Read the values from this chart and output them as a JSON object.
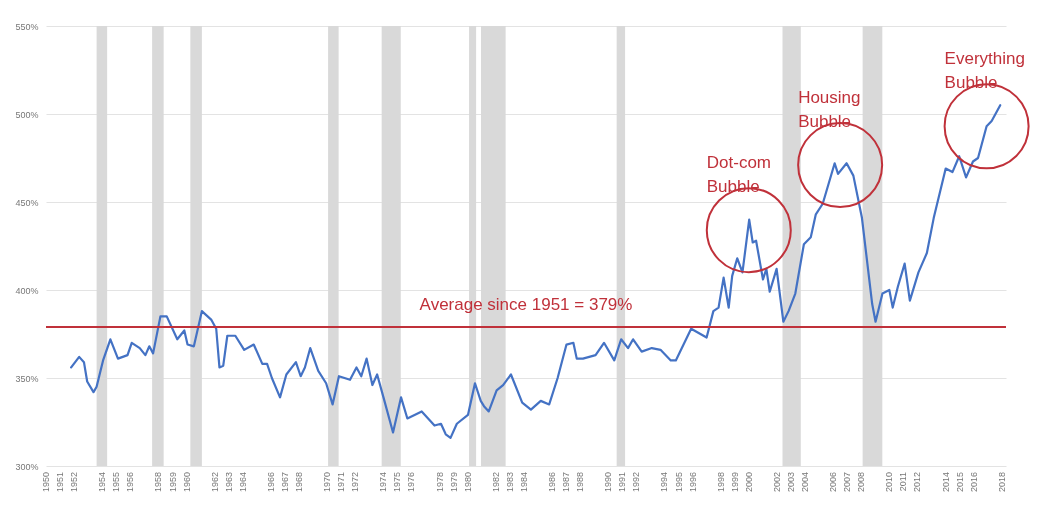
{
  "chart_data": {
    "type": "line",
    "xlim": [
      1950,
      2018.3
    ],
    "ylim": [
      300,
      550
    ],
    "yticks": [
      {
        "value": 300,
        "label": "300%"
      },
      {
        "value": 350,
        "label": "350%"
      },
      {
        "value": 400,
        "label": "400%"
      },
      {
        "value": 450,
        "label": "450%"
      },
      {
        "value": 500,
        "label": "500%"
      },
      {
        "value": 550,
        "label": "550%"
      }
    ],
    "xticks": [
      1950,
      1951,
      1952,
      1954,
      1955,
      1956,
      1958,
      1959,
      1960,
      1962,
      1963,
      1964,
      1966,
      1967,
      1968,
      1970,
      1971,
      1972,
      1974,
      1975,
      1976,
      1978,
      1979,
      1980,
      1982,
      1983,
      1984,
      1986,
      1987,
      1988,
      1990,
      1991,
      1992,
      1994,
      1995,
      1996,
      1998,
      1999,
      2000,
      2002,
      2003,
      2004,
      2006,
      2007,
      2008,
      2010,
      2011,
      2012,
      2014,
      2015,
      2016,
      2018
    ],
    "grid": "y",
    "series": [
      {
        "color": "#4472c4",
        "x": [
          1951.79,
          1952.36,
          1952.7,
          1952.93,
          1953.38,
          1953.6,
          1954.06,
          1954.58,
          1955.12,
          1955.8,
          1956.1,
          1956.67,
          1957.07,
          1957.35,
          1957.62,
          1958.14,
          1958.59,
          1959.34,
          1959.84,
          1960.07,
          1960.52,
          1961.09,
          1961.77,
          1962.11,
          1962.34,
          1962.61,
          1962.9,
          1963.47,
          1964.1,
          1964.78,
          1965.39,
          1965.73,
          1966.07,
          1966.65,
          1967.1,
          1967.78,
          1968.12,
          1968.42,
          1968.8,
          1969.37,
          1969.93,
          1970.39,
          1970.84,
          1971.63,
          1972.09,
          1972.43,
          1972.81,
          1973.22,
          1973.56,
          1974.01,
          1974.69,
          1975.26,
          1975.71,
          1976.73,
          1977.64,
          1978.1,
          1978.44,
          1978.78,
          1979.23,
          1980.02,
          1980.52,
          1980.93,
          1981.16,
          1981.5,
          1982.06,
          1982.52,
          1983.08,
          1983.88,
          1984.5,
          1985.2,
          1985.8,
          1986.4,
          1987.03,
          1987.52,
          1987.76,
          1988.2,
          1989.1,
          1989.7,
          1990.43,
          1990.92,
          1991.41,
          1991.77,
          1992.38,
          1993.1,
          1993.72,
          1994.45,
          1994.81,
          1995.9,
          1997,
          1997.48,
          1997.85,
          1998.21,
          1998.57,
          1998.82,
          1999.18,
          1999.55,
          2000.03,
          2000.28,
          2000.52,
          2001.01,
          2001.25,
          2001.49,
          2001.98,
          2002.46,
          2002.83,
          2003.31,
          2003.92,
          2004.41,
          2004.77,
          2005.26,
          2006.11,
          2006.35,
          2006.96,
          2007.44,
          2008.05,
          2008.78,
          2009.02,
          2009.51,
          2010,
          2010.24,
          2010.61,
          2011.09,
          2011.46,
          2012.07,
          2012.67,
          2013.16,
          2014.01,
          2014.49,
          2014.97,
          2015.46,
          2015.95,
          2016.31,
          2016.92,
          2017.28,
          2017.89
        ],
        "values": [
          356,
          362,
          359,
          348,
          342,
          345,
          360,
          372,
          361,
          363,
          370,
          367,
          363,
          368,
          364,
          385,
          385,
          372,
          377,
          369,
          368,
          388,
          383,
          378,
          356,
          357,
          374,
          374,
          366,
          369,
          358,
          358,
          350,
          339,
          352,
          359,
          351,
          356,
          367,
          354,
          347,
          335,
          351,
          349,
          356,
          351,
          361,
          346,
          352,
          339,
          319,
          339,
          327,
          331,
          323,
          324,
          318,
          316,
          324,
          329,
          347,
          337,
          334,
          331,
          343,
          346,
          352,
          336,
          332,
          337,
          335,
          350,
          369,
          370,
          361,
          361,
          363,
          370,
          360,
          372,
          367,
          372,
          365,
          367,
          366,
          360,
          360,
          378,
          373,
          388,
          390,
          407,
          390,
          408,
          418,
          410,
          440,
          427,
          428,
          406,
          412,
          399,
          412,
          382,
          388,
          398,
          426,
          430,
          443,
          449,
          472,
          466,
          472,
          465,
          441,
          392,
          382,
          398,
          400,
          390,
          402,
          415,
          394,
          410,
          421,
          441,
          469,
          467,
          476,
          464,
          473,
          475,
          493,
          496,
          505
        ]
      }
    ],
    "ref_lines": [
      {
        "axis": "y",
        "value": 379,
        "label": "Average since 1951 = 379%",
        "color": "#c0313a"
      }
    ],
    "bands": [
      {
        "axis": "x",
        "from": 1953.6,
        "to": 1954.35,
        "color": "#d9d9d9"
      },
      {
        "axis": "x",
        "from": 1957.55,
        "to": 1958.37,
        "color": "#d9d9d9"
      },
      {
        "axis": "x",
        "from": 1960.27,
        "to": 1961.09,
        "color": "#d9d9d9"
      },
      {
        "axis": "x",
        "from": 1970.07,
        "to": 1970.82,
        "color": "#d9d9d9"
      },
      {
        "axis": "x",
        "from": 1973.88,
        "to": 1975.24,
        "color": "#d9d9d9"
      },
      {
        "axis": "x",
        "from": 1980.1,
        "to": 1980.6,
        "color": "#d9d9d9"
      },
      {
        "axis": "x",
        "from": 1980.95,
        "to": 1982.7,
        "color": "#d9d9d9"
      },
      {
        "axis": "x",
        "from": 1990.6,
        "to": 1991.2,
        "color": "#d9d9d9"
      },
      {
        "axis": "x",
        "from": 2002.4,
        "to": 2003.7,
        "color": "#d9d9d9"
      },
      {
        "axis": "x",
        "from": 2008.1,
        "to": 2009.5,
        "color": "#d9d9d9"
      }
    ],
    "annotations": [
      {
        "text": "Dot-com\nBubble",
        "x": 2000,
        "y": 434
      },
      {
        "text": "Housing\nBubble",
        "x": 2006.5,
        "y": 471
      },
      {
        "text": "Everything\nBubble",
        "x": 2016.92,
        "y": 493
      }
    ]
  }
}
